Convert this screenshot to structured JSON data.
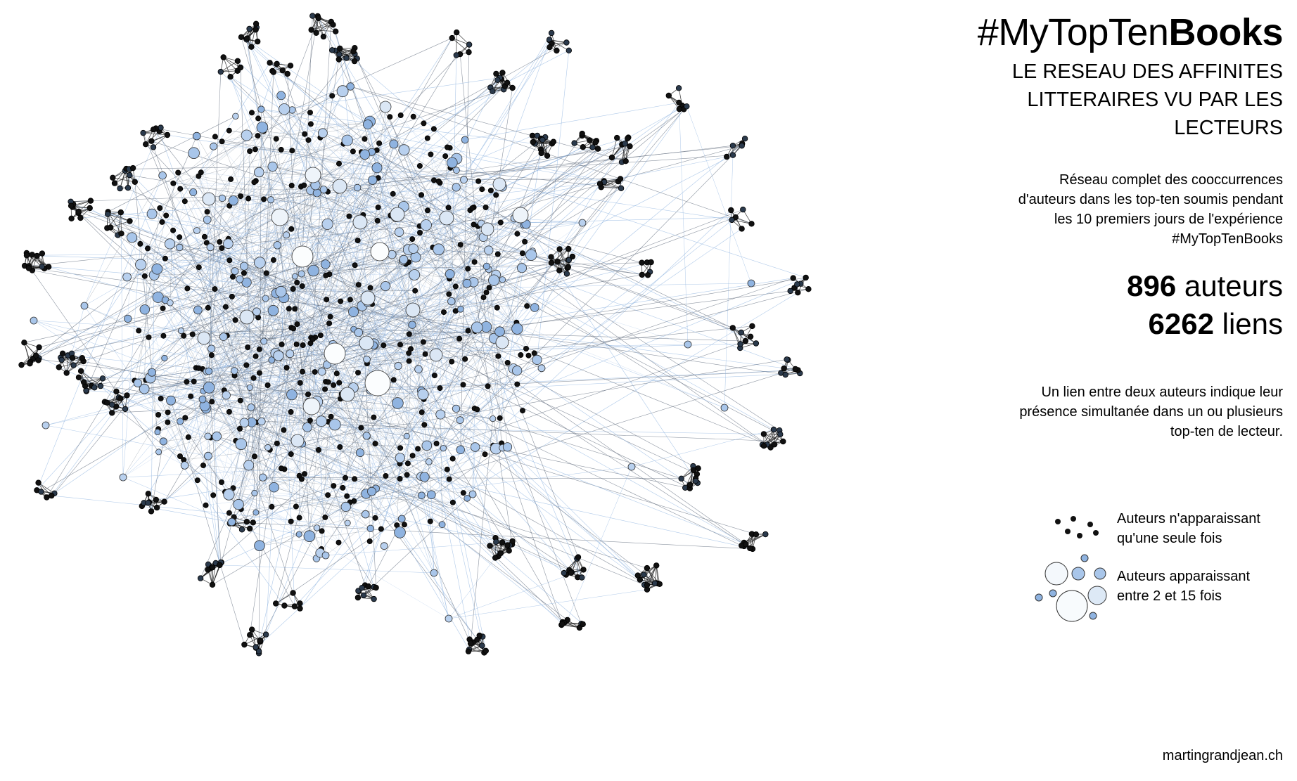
{
  "title": {
    "prefix": "#MyTopTen",
    "bold": "Books"
  },
  "subtitle": {
    "line1": "LE RESEAU DES AFFINITES",
    "line2": "LITTERAIRES VU PAR LES",
    "line3": "LECTEURS"
  },
  "description": {
    "line1": "Réseau complet des cooccurrences",
    "line2": "d'auteurs dans les top-ten soumis pendant",
    "line3": "les 10 premiers jours de l'expérience",
    "line4": "#MyTopTenBooks"
  },
  "stats": {
    "authors_count": "896",
    "authors_label": "auteurs",
    "links_count": "6262",
    "links_label": "liens"
  },
  "explanation": {
    "line1": "Un lien entre deux auteurs indique leur",
    "line2": "présence simultanée dans un ou plusieurs",
    "line3": "top-ten de lecteur."
  },
  "legend": {
    "single": {
      "line1": "Auteurs n'apparaissant",
      "line2": "qu'une seule fois",
      "color": "#111111"
    },
    "multiple": {
      "line1": "Auteurs apparaissant",
      "line2": "entre 2 et 15 fois",
      "colors": [
        "#8fb3e0",
        "#a9c6ea",
        "#cfe0f3",
        "#f4f8fc"
      ]
    }
  },
  "credit": "martingrandjean.ch",
  "colors": {
    "edge_dark": "#5e6a7a",
    "edge_light": "#8fb3e0",
    "node_single": "#111111",
    "node_small": "#8fb3e0",
    "node_large": "#f6f9fc"
  }
}
